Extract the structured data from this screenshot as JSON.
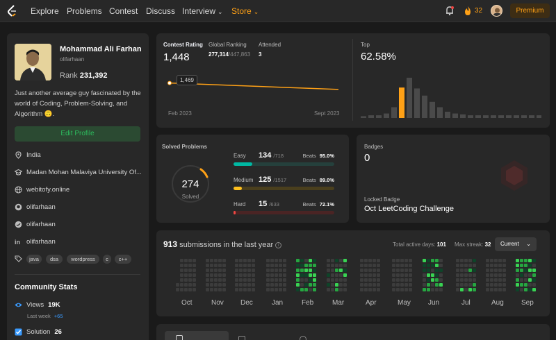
{
  "nav": {
    "links": [
      "Explore",
      "Problems",
      "Contest",
      "Discuss"
    ],
    "interview": "Interview",
    "store": "Store",
    "streak": "32",
    "premium": "Premium"
  },
  "profile": {
    "name": "Mohammad Ali Farhan",
    "handle": "olifarhaan",
    "rank_label": "Rank",
    "rank": "231,392",
    "bio": "Just another average guy fascinated by the world of Coding, Problem-Solving, and Algorithm 🙃.",
    "edit_label": "Edit Profile",
    "location": "India",
    "university": "Madan Mohan Malaviya University Of...",
    "website": "webitofy.online",
    "github": "olifarhaan",
    "twitter": "olifarhaan",
    "linkedin": "olifarhaan",
    "tags": [
      "java",
      "dsa",
      "wordpress",
      "c",
      "c++"
    ]
  },
  "community": {
    "title": "Community Stats",
    "views_label": "Views",
    "views": "19K",
    "last_week_label": "Last week",
    "views_delta": "+65",
    "solution_label": "Solution",
    "solution": "26"
  },
  "contest": {
    "rating_label": "Contest Rating",
    "rating": "1,448",
    "global_label": "Global Ranking",
    "global_rank": "277,314",
    "global_total": "/447,863",
    "attended_label": "Attended",
    "attended": "3",
    "tooltip": "1,469",
    "x_start": "Feb 2023",
    "x_end": "Sept 2023",
    "top_label": "Top",
    "top_value": "62.58%",
    "line": [
      1469,
      1448
    ],
    "histogram": [
      2,
      3,
      3,
      5,
      12,
      34,
      45,
      33,
      25,
      18,
      12,
      7,
      5,
      4,
      3,
      3,
      3,
      3,
      3,
      3,
      3,
      3,
      3,
      3
    ],
    "highlight_index": 5
  },
  "solved": {
    "title": "Solved Problems",
    "total": "274",
    "total_label": "Solved",
    "easy": {
      "label": "Easy",
      "count": "134",
      "total": "/718",
      "beats_label": "Beats",
      "beats": "95.0%",
      "ratio": 0.187
    },
    "medium": {
      "label": "Medium",
      "count": "125",
      "total": "/1517",
      "beats_label": "Beats",
      "beats": "89.0%",
      "ratio": 0.082
    },
    "hard": {
      "label": "Hard",
      "count": "15",
      "total": "/633",
      "beats_label": "Beats",
      "beats": "72.1%",
      "ratio": 0.024
    }
  },
  "badges": {
    "title": "Badges",
    "count": "0",
    "locked_label": "Locked Badge",
    "locked_name": "Oct LeetCoding Challenge"
  },
  "submissions": {
    "count": "913",
    "label": "submissions in the last year",
    "active_label": "Total active days:",
    "active_days": "101",
    "streak_label": "Max streak:",
    "max_streak": "32",
    "select": "Current",
    "months": [
      "Oct",
      "Nov",
      "Dec",
      "Jan",
      "Feb",
      "Mar",
      "Apr",
      "May",
      "Jun",
      "Jul",
      "Aug",
      "Sep"
    ]
  },
  "colors": {
    "accent": "#ffa116",
    "easy": "#00b8a3",
    "medium": "#ffc01e",
    "hard": "#ef4743",
    "green": "#2cbb5d"
  }
}
